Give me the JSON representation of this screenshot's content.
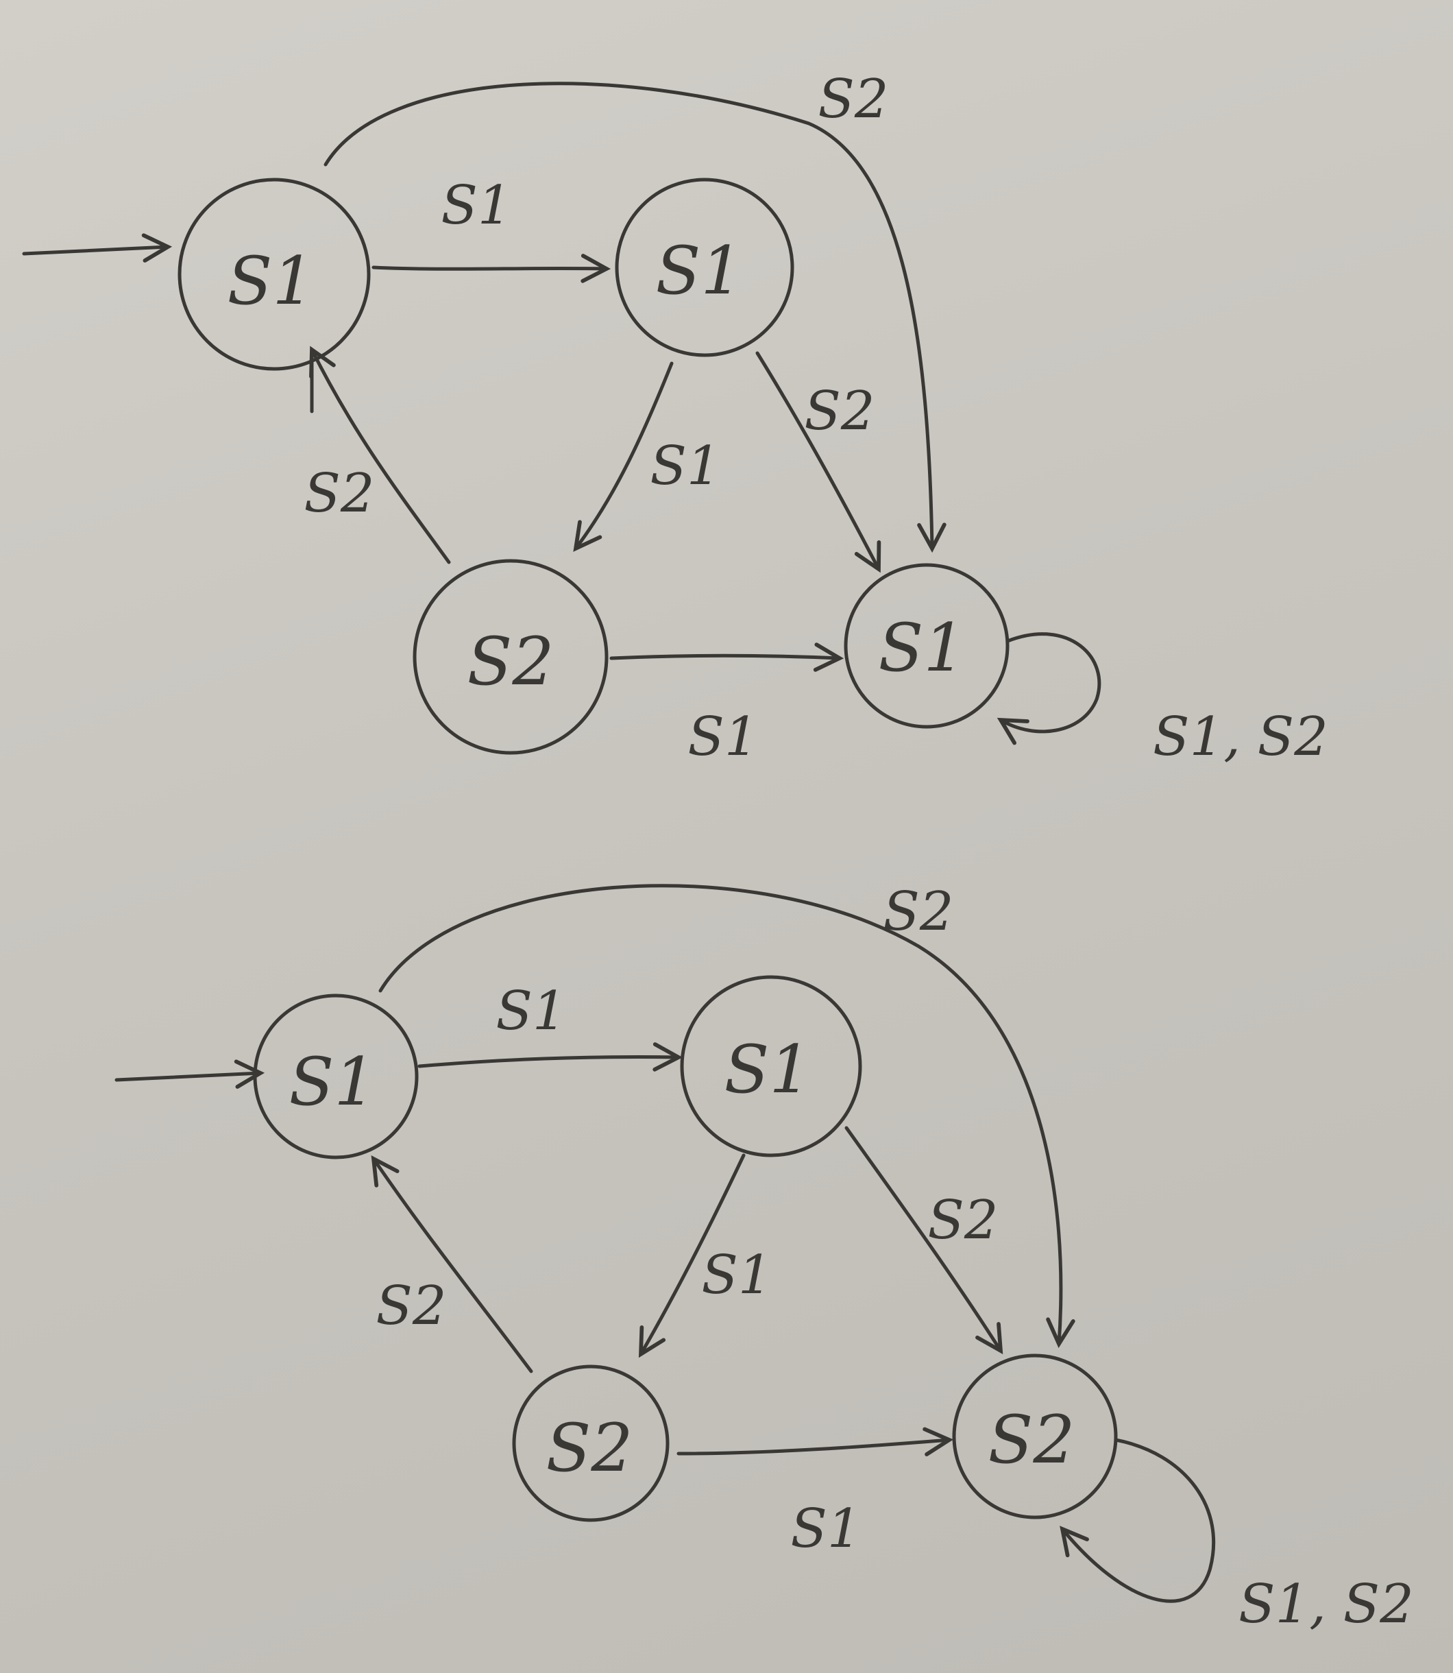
{
  "diagrams": [
    {
      "nodes": [
        {
          "label": "S1"
        },
        {
          "label": "S1"
        },
        {
          "label": "S2"
        },
        {
          "label": "S1"
        }
      ],
      "edges": [
        {
          "label": "S1"
        },
        {
          "label": "S2"
        },
        {
          "label": "S1"
        },
        {
          "label": "S2"
        },
        {
          "label": "S2"
        },
        {
          "label": "S1"
        },
        {
          "label": "S1, S2"
        }
      ]
    },
    {
      "nodes": [
        {
          "label": "S1"
        },
        {
          "label": "S1"
        },
        {
          "label": "S2"
        },
        {
          "label": "S2"
        }
      ],
      "edges": [
        {
          "label": "S1"
        },
        {
          "label": "S2"
        },
        {
          "label": "S1"
        },
        {
          "label": "S2"
        },
        {
          "label": "S2"
        },
        {
          "label": "S1"
        },
        {
          "label": "S1, S2"
        }
      ]
    }
  ],
  "colors": {
    "ink": "#3a3835",
    "paper": "#cdcac4"
  }
}
